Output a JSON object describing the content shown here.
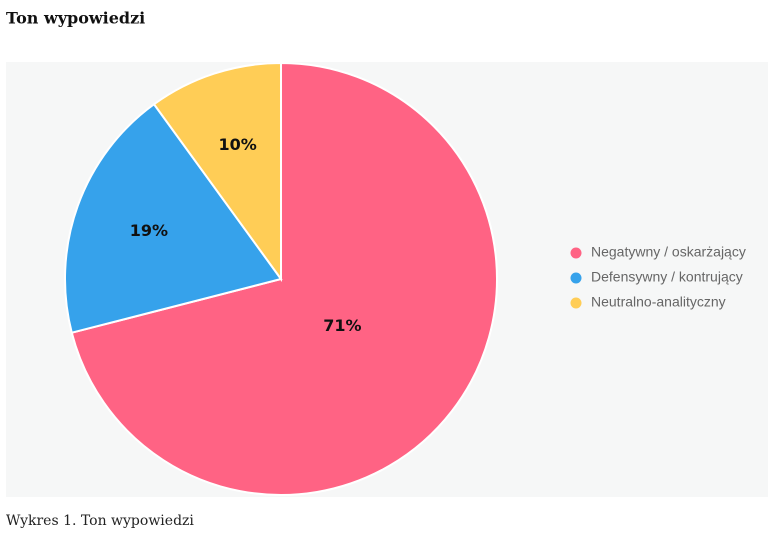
{
  "chart_data": {
    "type": "pie",
    "title": "Ton wypowiedzi",
    "caption": "Wykres 1. Ton wypowiedzi",
    "categories": [
      "Negatywny / oskarżający",
      "Defensywny / kontrujący",
      "Neutralno-analityczny"
    ],
    "values": [
      71,
      19,
      10
    ],
    "value_labels": [
      "71%",
      "19%",
      "10%"
    ],
    "colors": [
      "#ff6384",
      "#36a2eb",
      "#ffcd56"
    ],
    "legend": "right"
  }
}
